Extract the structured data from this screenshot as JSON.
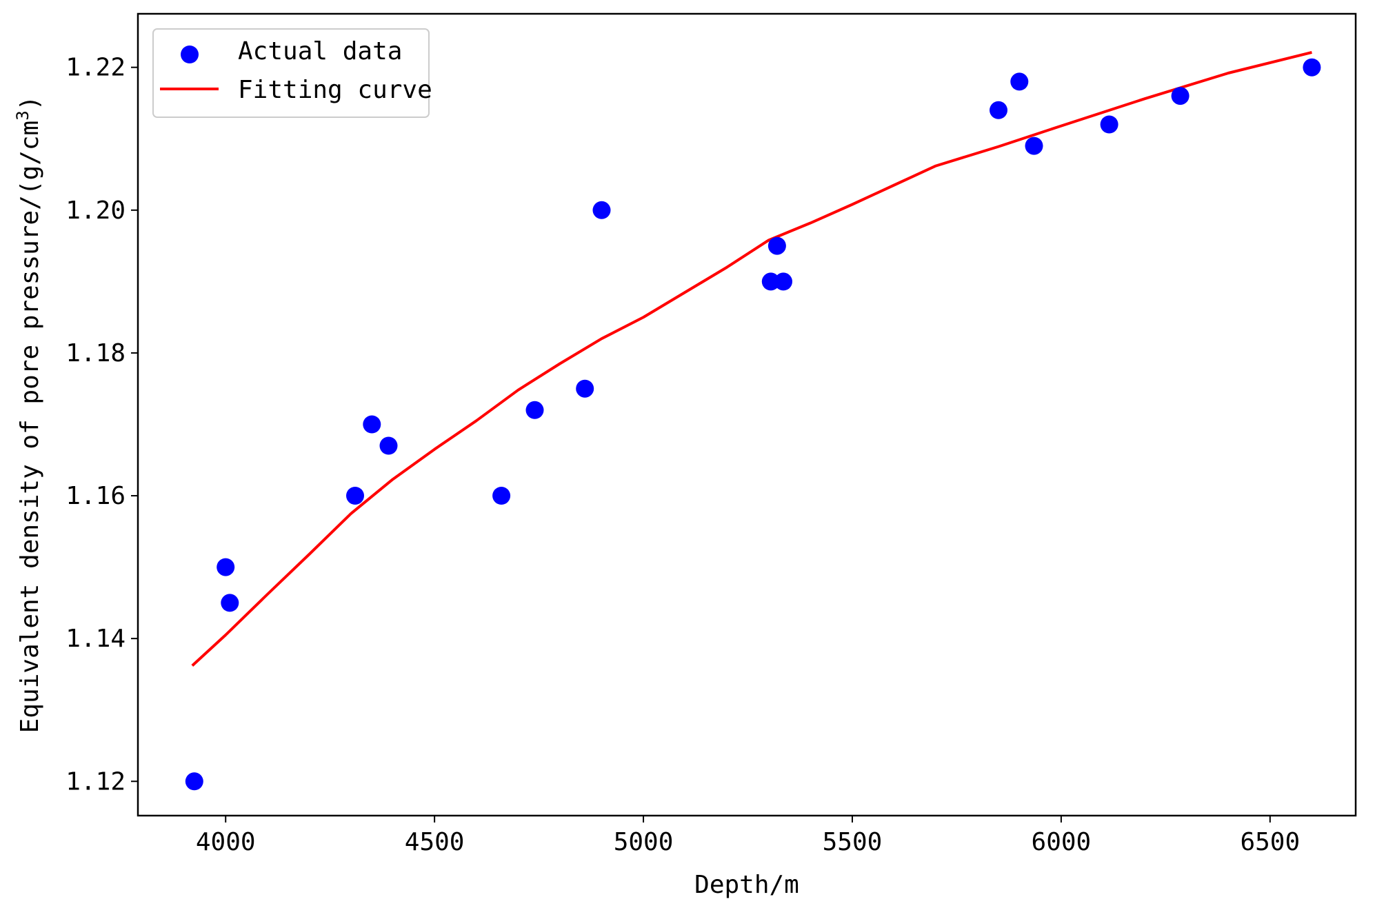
{
  "colors": {
    "scatter": "#0000ff",
    "fit_line": "#ff0000",
    "axes": "#000000",
    "background": "#ffffff",
    "legend_border": "#cccccc"
  },
  "chart_data": {
    "type": "scatter",
    "title": "",
    "xlabel": "Depth/m",
    "ylabel": "Equivalent density of pore pressure/(g/cm",
    "ylabel_superscript": "3",
    "ylabel_suffix": ")",
    "xlim": [
      3790,
      6705
    ],
    "ylim": [
      1.1152,
      1.2275
    ],
    "xticks": [
      4000,
      4500,
      5000,
      5500,
      6000,
      6500
    ],
    "xtick_labels": [
      "4000",
      "4500",
      "5000",
      "5500",
      "6000",
      "6500"
    ],
    "yticks": [
      1.12,
      1.14,
      1.16,
      1.18,
      1.2,
      1.22
    ],
    "ytick_labels": [
      "1.12",
      "1.14",
      "1.16",
      "1.18",
      "1.20",
      "1.22"
    ],
    "grid": false,
    "legend_position": "top-left",
    "series": [
      {
        "name": "Actual data",
        "kind": "scatter",
        "points": [
          [
            3925,
            1.12
          ],
          [
            4000,
            1.15
          ],
          [
            4010,
            1.145
          ],
          [
            4310,
            1.16
          ],
          [
            4350,
            1.17
          ],
          [
            4390,
            1.167
          ],
          [
            4660,
            1.16
          ],
          [
            4740,
            1.172
          ],
          [
            4860,
            1.175
          ],
          [
            4900,
            1.2
          ],
          [
            5305,
            1.19
          ],
          [
            5320,
            1.195
          ],
          [
            5335,
            1.19
          ],
          [
            5850,
            1.214
          ],
          [
            5900,
            1.218
          ],
          [
            5935,
            1.209
          ],
          [
            6115,
            1.212
          ],
          [
            6285,
            1.216
          ],
          [
            6600,
            1.22
          ]
        ]
      },
      {
        "name": "Fitting curve",
        "kind": "line",
        "points": [
          [
            3920,
            1.1362
          ],
          [
            4000,
            1.1405
          ],
          [
            4100,
            1.1462
          ],
          [
            4200,
            1.1518
          ],
          [
            4300,
            1.1575
          ],
          [
            4400,
            1.1623
          ],
          [
            4500,
            1.1665
          ],
          [
            4600,
            1.1705
          ],
          [
            4700,
            1.1748
          ],
          [
            4800,
            1.1785
          ],
          [
            4900,
            1.182
          ],
          [
            5000,
            1.185
          ],
          [
            5100,
            1.1885
          ],
          [
            5200,
            1.192
          ],
          [
            5300,
            1.1958
          ],
          [
            5400,
            1.1982
          ],
          [
            5500,
            1.2008
          ],
          [
            5600,
            1.2035
          ],
          [
            5700,
            1.2062
          ],
          [
            5850,
            1.2089
          ],
          [
            6000,
            1.2118
          ],
          [
            6200,
            1.2156
          ],
          [
            6400,
            1.2192
          ],
          [
            6600,
            1.2221
          ]
        ]
      }
    ]
  }
}
